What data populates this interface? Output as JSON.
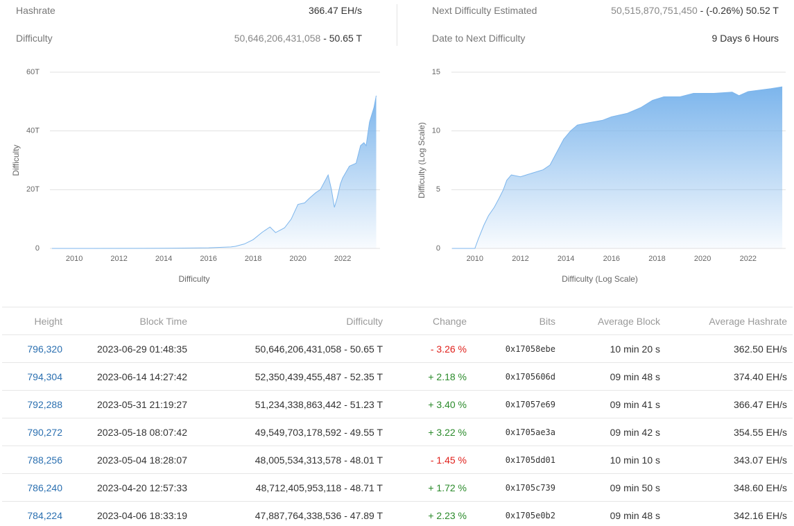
{
  "stats": [
    {
      "label": "Hashrate",
      "value": "366.47 EH/s"
    },
    {
      "label": "Difficulty",
      "value": "50,646,206,431,058",
      "suffix": "- 50.65 T"
    },
    {
      "label": "Next Difficulty Estimated",
      "value": "50,515,870,751,450",
      "suffix": "- (-0.26%) 50.52 T"
    },
    {
      "label": "Date to Next Difficulty",
      "value": "9 Days 6 Hours"
    }
  ],
  "chart_data": [
    {
      "type": "area",
      "y_label": "Difficulty",
      "x_label": "Difficulty",
      "color": "#7cb5ec",
      "grid": true,
      "xlim": [
        2008.91,
        2023.67
      ],
      "xticks": [
        2010,
        2012,
        2014,
        2016,
        2018,
        2020,
        2022
      ],
      "ylim": [
        0,
        60
      ],
      "yticks": [
        0,
        {
          "value": 20,
          "label": "20T"
        },
        {
          "value": 40,
          "label": "40T"
        },
        {
          "value": 60,
          "label": "60T"
        }
      ],
      "x": [
        2009.0,
        2013.0,
        2014.0,
        2016.0,
        2017.0,
        2017.2,
        2017.6,
        2018.0,
        2018.4,
        2018.75,
        2019.0,
        2019.4,
        2019.7,
        2020.0,
        2020.3,
        2020.5,
        2020.8,
        2021.0,
        2021.35,
        2021.5,
        2021.63,
        2021.75,
        2021.9,
        2022.0,
        2022.3,
        2022.6,
        2022.8,
        2022.95,
        2023.05,
        2023.2,
        2023.4,
        2023.5
      ],
      "values": [
        0,
        0.02,
        0.05,
        0.2,
        0.5,
        0.7,
        1.5,
        3,
        5.5,
        7.3,
        5.4,
        7,
        10,
        15,
        15.5,
        17,
        19,
        20,
        25,
        20,
        14,
        17,
        22,
        24,
        28,
        29,
        35,
        36,
        35,
        43,
        48,
        52
      ]
    },
    {
      "type": "area",
      "y_label": "Difficulty (Log Scale)",
      "x_label": "Difficulty (Log Scale)",
      "color": "#7cb5ec",
      "grid": true,
      "xlim": [
        2008.97,
        2023.65
      ],
      "xticks": [
        2010,
        2012,
        2014,
        2016,
        2018,
        2020,
        2022
      ],
      "ylim": [
        0,
        15
      ],
      "yticks": [
        0,
        5,
        10,
        15
      ],
      "x": [
        2009.0,
        2010.0,
        2010.15,
        2010.4,
        2010.6,
        2010.85,
        2011.07,
        2011.25,
        2011.4,
        2011.6,
        2012.0,
        2012.5,
        2013.0,
        2013.3,
        2013.6,
        2013.9,
        2014.2,
        2014.5,
        2015.0,
        2015.6,
        2016.0,
        2016.7,
        2017.3,
        2017.8,
        2018.3,
        2019.0,
        2019.6,
        2020.5,
        2021.3,
        2021.6,
        2022.0,
        2023.0,
        2023.5
      ],
      "values": [
        0,
        0,
        0.8,
        2.0,
        2.8,
        3.5,
        4.3,
        5.0,
        5.8,
        6.26,
        6.1,
        6.4,
        6.7,
        7.1,
        8.2,
        9.3,
        10.0,
        10.5,
        10.7,
        10.9,
        11.2,
        11.5,
        12.0,
        12.6,
        12.9,
        12.9,
        13.2,
        13.2,
        13.3,
        13.0,
        13.35,
        13.6,
        13.75
      ]
    }
  ],
  "table": {
    "headers": [
      "Height",
      "Block Time",
      "Difficulty",
      "Change",
      "Bits",
      "Average Block",
      "Average Hashrate"
    ],
    "rows": [
      [
        "796,320",
        "2023-06-29 01:48:35",
        "50,646,206,431,058 - 50.65 T",
        "- 3.26 %",
        "0x17058ebe",
        "10 min 20 s",
        "362.50 EH/s"
      ],
      [
        "794,304",
        "2023-06-14 14:27:42",
        "52,350,439,455,487 - 52.35 T",
        "+ 2.18 %",
        "0x1705606d",
        "09 min 48 s",
        "374.40 EH/s"
      ],
      [
        "792,288",
        "2023-05-31 21:19:27",
        "51,234,338,863,442 - 51.23 T",
        "+ 3.40 %",
        "0x17057e69",
        "09 min 41 s",
        "366.47 EH/s"
      ],
      [
        "790,272",
        "2023-05-18 08:07:42",
        "49,549,703,178,592 - 49.55 T",
        "+ 3.22 %",
        "0x1705ae3a",
        "09 min 42 s",
        "354.55 EH/s"
      ],
      [
        "788,256",
        "2023-05-04 18:28:07",
        "48,005,534,313,578 - 48.01 T",
        "- 1.45 %",
        "0x1705dd01",
        "10 min 10 s",
        "343.07 EH/s"
      ],
      [
        "786,240",
        "2023-04-20 12:57:33",
        "48,712,405,953,118 - 48.71 T",
        "+ 1.72 %",
        "0x1705c739",
        "09 min 50 s",
        "348.60 EH/s"
      ],
      [
        "784,224",
        "2023-04-06 18:33:19",
        "47,887,764,338,536 - 47.89 T",
        "+ 2.23 %",
        "0x1705e0b2",
        "09 min 48 s",
        "342.16 EH/s"
      ]
    ]
  }
}
